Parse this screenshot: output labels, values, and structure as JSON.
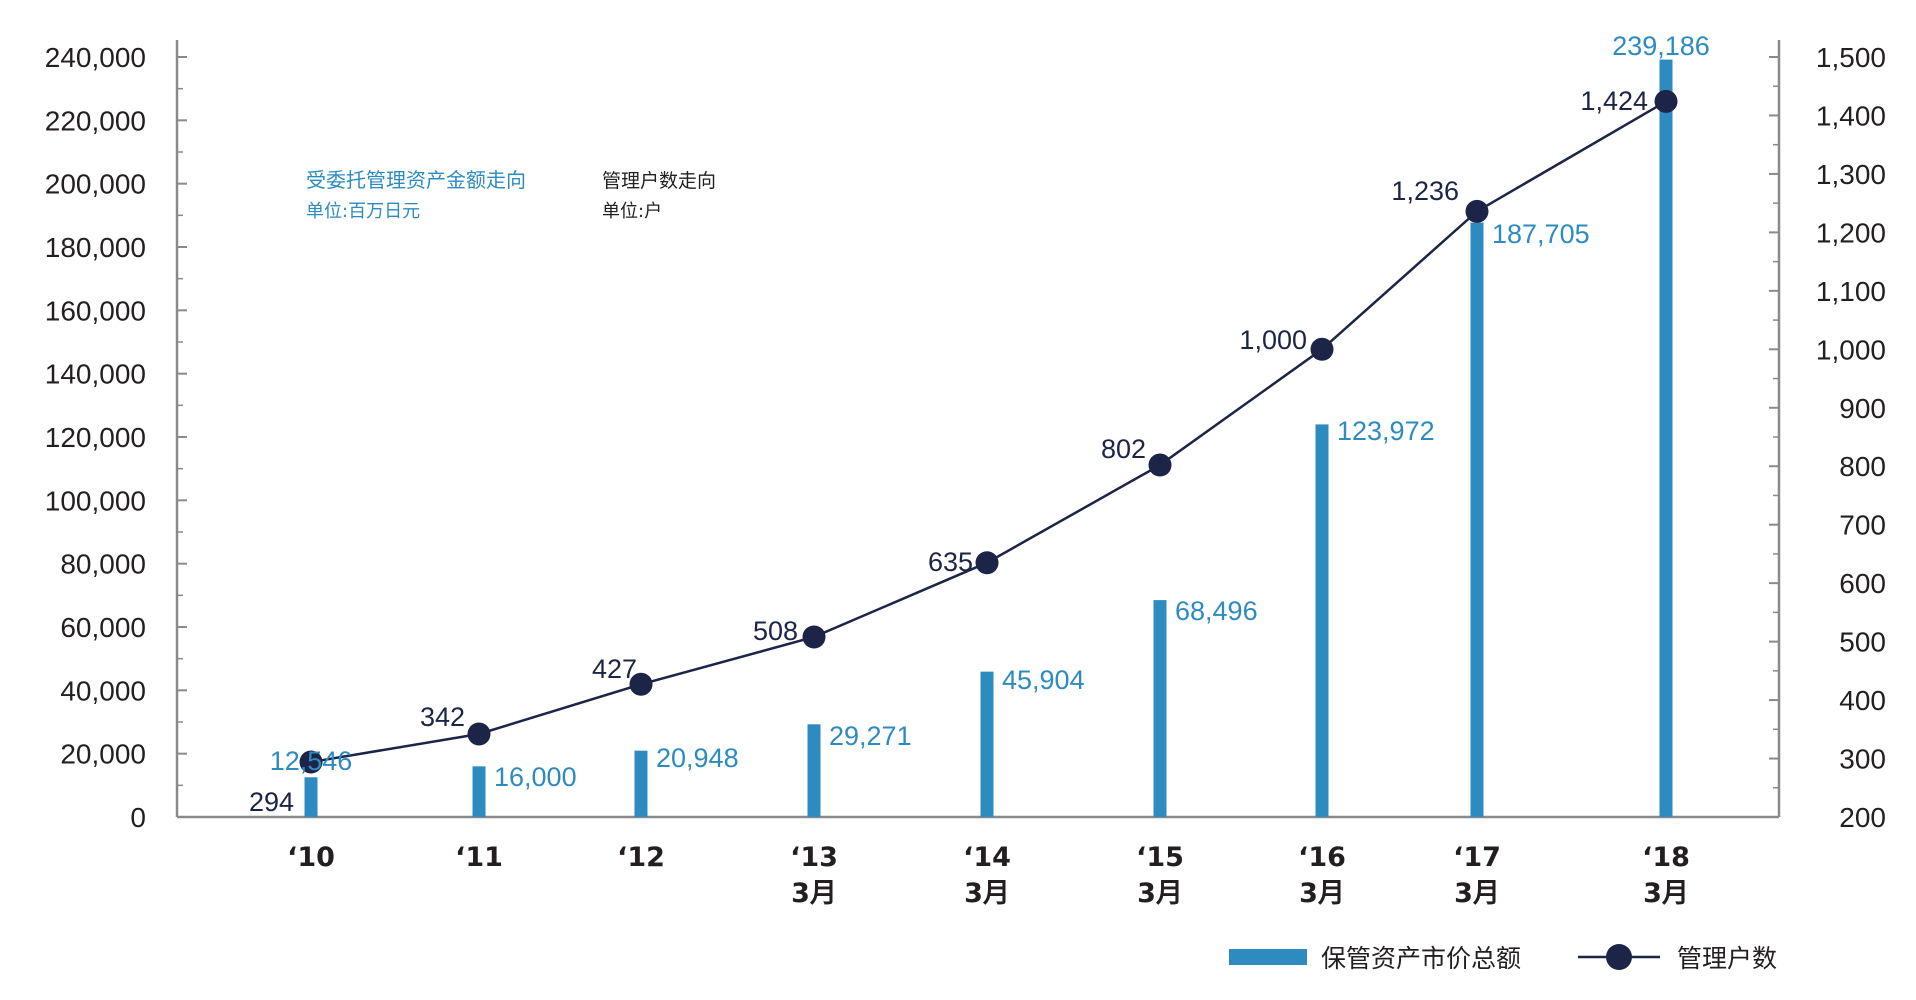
{
  "chart_data": {
    "type": "bar",
    "categories": [
      [
        "‘10"
      ],
      [
        "‘11"
      ],
      [
        "‘12"
      ],
      [
        "‘13",
        "3月"
      ],
      [
        "‘14",
        "3月"
      ],
      [
        "‘15",
        "3月"
      ],
      [
        "‘16",
        "3月"
      ],
      [
        "‘17",
        "3月"
      ],
      [
        "‘18",
        "3月"
      ]
    ],
    "series": [
      {
        "name": "保管资产市价总额",
        "type": "bar",
        "axis": "left",
        "values": [
          12546,
          16000,
          20948,
          29271,
          45904,
          68496,
          123972,
          187705,
          239186
        ],
        "labels": [
          "12,546",
          "16,000",
          "20,948",
          "29,271",
          "45,904",
          "68,496",
          "123,972",
          "187,705",
          "239,186"
        ]
      },
      {
        "name": "管理户数",
        "type": "line",
        "axis": "right",
        "values": [
          294,
          342,
          427,
          508,
          635,
          802,
          1000,
          1236,
          1424
        ],
        "labels": [
          "294",
          "342",
          "427",
          "508",
          "635",
          "802",
          "1,000",
          "1,236",
          "1,424"
        ]
      }
    ],
    "left_axis": {
      "ylim": [
        0,
        240000
      ],
      "tick_values": [
        0,
        20000,
        40000,
        60000,
        80000,
        100000,
        120000,
        140000,
        160000,
        180000,
        200000,
        220000,
        240000
      ],
      "tick_labels": [
        "0",
        "20,000",
        "40,000",
        "60,000",
        "80,000",
        "100,000",
        "120,000",
        "140,000",
        "160,000",
        "180,000",
        "200,000",
        "220,000",
        "240,000"
      ]
    },
    "right_axis": {
      "ylim": [
        200,
        1500
      ],
      "tick_values": [
        200,
        300,
        400,
        500,
        600,
        700,
        800,
        900,
        1000,
        1100,
        1200,
        1300,
        1400,
        1500
      ],
      "tick_labels": [
        "200",
        "300",
        "400",
        "500",
        "600",
        "700",
        "800",
        "900",
        "1,000",
        "1,100",
        "1,200",
        "1,300",
        "1,400",
        "1,500"
      ]
    },
    "annotations": {
      "assets_title": "受委托管理资产金额走向",
      "assets_unit": "单位:百万日元",
      "accounts_title": "管理户数走向",
      "accounts_unit": "单位:户"
    },
    "legend_position": "bottom-right",
    "grid": false,
    "colors": {
      "bar": "#2e8bc0",
      "line": "#1c2447",
      "marker": "#1c2447",
      "axis": "#8a8a8a"
    }
  }
}
